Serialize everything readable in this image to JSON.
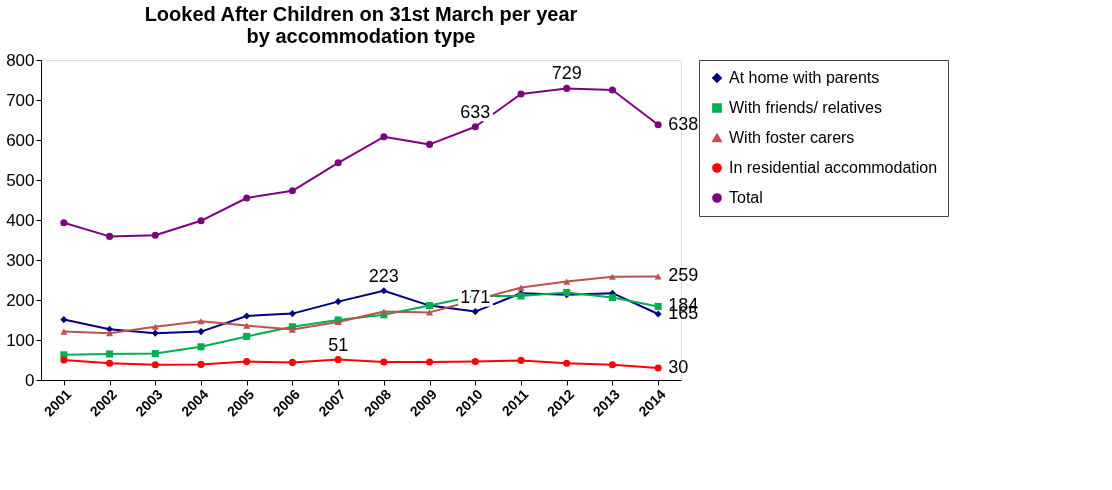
{
  "chart_data": {
    "type": "line",
    "title": "Looked After Children on 31st March per year\nby accommodation type",
    "categories": [
      "2001",
      "2002",
      "2003",
      "2004",
      "2005",
      "2006",
      "2007",
      "2008",
      "2009",
      "2010",
      "2011",
      "2012",
      "2013",
      "2014"
    ],
    "ylim": [
      0,
      800
    ],
    "yticks": [
      0,
      100,
      200,
      300,
      400,
      500,
      600,
      700,
      800
    ],
    "grid": false,
    "legend": "right",
    "series": [
      {
        "name": "At home with parents",
        "color": "#000080",
        "marker": "diamond",
        "values": [
          151,
          127,
          117,
          121,
          160,
          166,
          196,
          223,
          186,
          171,
          217,
          213,
          217,
          165
        ],
        "value_labels": [
          null,
          null,
          null,
          null,
          null,
          null,
          null,
          "223",
          null,
          "171",
          null,
          null,
          null,
          "165"
        ]
      },
      {
        "name": "With friends/ relatives",
        "color": "#00b050",
        "marker": "square",
        "values": [
          63,
          65,
          66,
          83,
          109,
          133,
          150,
          163,
          186,
          210,
          210,
          219,
          206,
          184
        ],
        "value_labels": [
          null,
          null,
          null,
          null,
          null,
          null,
          null,
          null,
          null,
          null,
          null,
          null,
          null,
          "184"
        ]
      },
      {
        "name": "With foster carers",
        "color": "#c0504d",
        "marker": "triangle",
        "values": [
          121,
          117,
          133,
          147,
          136,
          126,
          145,
          171,
          169,
          200,
          231,
          246,
          258,
          259
        ],
        "value_labels": [
          null,
          null,
          null,
          null,
          null,
          null,
          null,
          null,
          null,
          null,
          null,
          null,
          null,
          "259"
        ]
      },
      {
        "name": "In residential accommodation",
        "color": "#ff0000",
        "marker": "circle",
        "values": [
          50,
          42,
          38,
          39,
          46,
          44,
          51,
          45,
          45,
          46,
          49,
          42,
          38,
          30
        ],
        "value_labels": [
          null,
          null,
          null,
          null,
          null,
          null,
          "51",
          null,
          null,
          null,
          null,
          null,
          null,
          "30"
        ]
      },
      {
        "name": "Total",
        "color": "#7f007f",
        "marker": "circle",
        "values": [
          393,
          359,
          362,
          398,
          455,
          473,
          543,
          608,
          589,
          633,
          715,
          729,
          725,
          638
        ],
        "value_labels": [
          null,
          null,
          null,
          null,
          null,
          null,
          null,
          null,
          null,
          "633",
          null,
          "729",
          null,
          "638"
        ]
      }
    ]
  }
}
